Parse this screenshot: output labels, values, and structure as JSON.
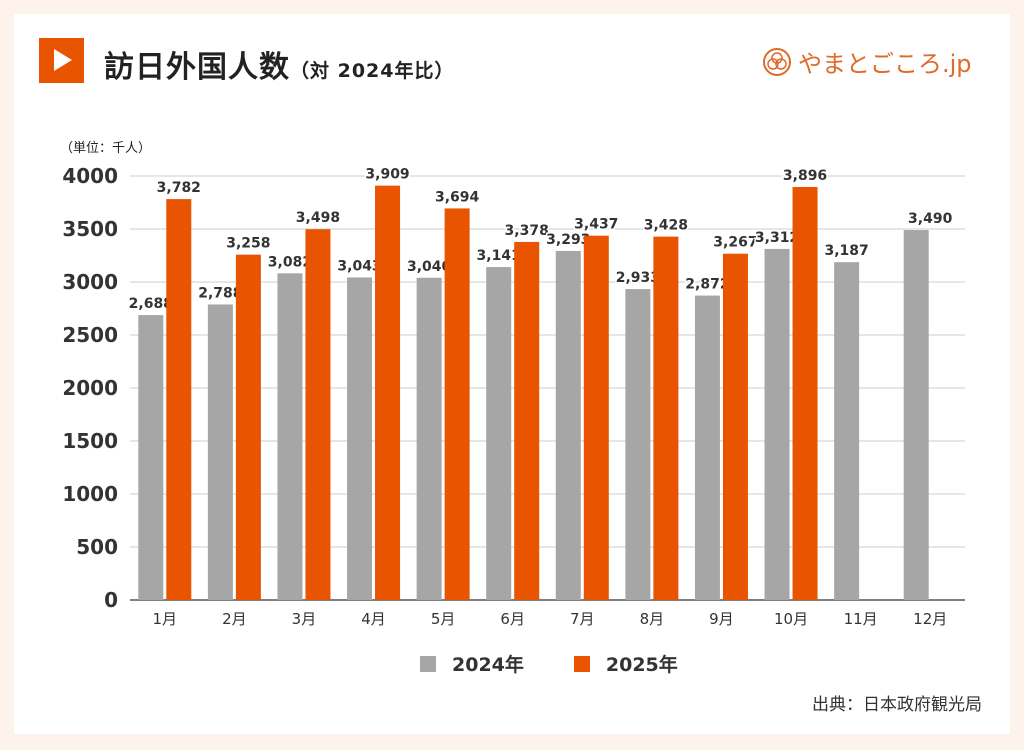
{
  "header": {
    "title": "訪日外国人数",
    "subtitle": "（対 2024年比）",
    "logo_text": "やまとごころ.jp",
    "icon": "play-icon"
  },
  "unit_label": "（単位：千人）",
  "source": "出典：日本政府観光局",
  "colors": {
    "2024": "#a6a6a6",
    "2025": "#e85400",
    "accent": "#e85400"
  },
  "chart_data": {
    "type": "bar",
    "categories": [
      "1月",
      "2月",
      "3月",
      "4月",
      "5月",
      "6月",
      "7月",
      "8月",
      "9月",
      "10月",
      "11月",
      "12月"
    ],
    "series": [
      {
        "name": "2024年",
        "values": [
          2688,
          2788,
          3082,
          3043,
          3040,
          3141,
          3293,
          2933,
          2872,
          3312,
          3187,
          3490
        ],
        "labels": [
          "2,688",
          "2,788",
          "3,082",
          "3,043",
          "3,040",
          "3,141",
          "3,293",
          "2,933",
          "2,872",
          "3,312",
          "3,187",
          "3,490"
        ]
      },
      {
        "name": "2025年",
        "values": [
          3782,
          3258,
          3498,
          3909,
          3694,
          3378,
          3437,
          3428,
          3267,
          3896,
          null,
          null
        ],
        "labels": [
          "3,782",
          "3,258",
          "3,498",
          "3,909",
          "3,694",
          "3,378",
          "3,437",
          "3,428",
          "3,267",
          "3,896",
          "",
          ""
        ]
      }
    ],
    "yticks": [
      "0",
      "500",
      "1000",
      "1500",
      "2000",
      "2500",
      "3000",
      "3500",
      "4000"
    ],
    "ylim": [
      0,
      4000
    ],
    "grid": true,
    "legend": "bottom"
  }
}
